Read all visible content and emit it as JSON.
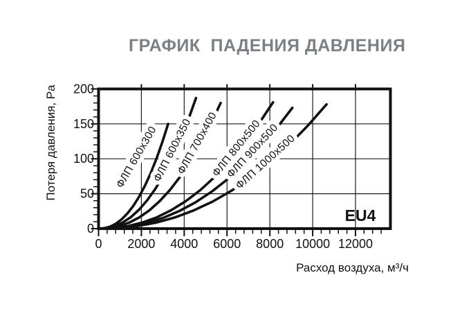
{
  "title": {
    "text": "ГРАФИК  ПАДЕНИЯ ДАВЛЕНИЯ",
    "color": "#7b8084"
  },
  "chart_data": {
    "type": "line",
    "title": "ГРАФИК ПАДЕНИЯ ДАВЛЕНИЯ",
    "xlabel": "Расход воздуха, м³/ч",
    "ylabel": "Потеря давления, Pa",
    "annotation": "EU4",
    "grid": true,
    "xlim": [
      0,
      13600
    ],
    "ylim": [
      0,
      200
    ],
    "line_color": "#111111",
    "xticks": {
      "values": [
        0,
        2000,
        4000,
        6000,
        8000,
        10000,
        12000
      ],
      "labels": [
        "0",
        "2000",
        "4000",
        "6000",
        "8000",
        "10000",
        "12000"
      ],
      "minor_step": 400,
      "minor_max": 13200
    },
    "yticks": {
      "values": [
        0,
        50,
        100,
        150,
        200
      ],
      "labels": [
        "0",
        "50",
        "100",
        "150",
        "200"
      ],
      "minor_step": 10,
      "minor_max": 190
    },
    "series": [
      {
        "name": "ФЛП 600x300",
        "label_at": [
          1900,
          100
        ],
        "label_rotation": -60,
        "points": [
          [
            0,
            0
          ],
          [
            271,
            0.6
          ],
          [
            542,
            2.9
          ],
          [
            813,
            7.1
          ],
          [
            1083,
            13.4
          ],
          [
            1354,
            21.9
          ],
          [
            1625,
            32.6
          ],
          [
            1896,
            45.8
          ],
          [
            2167,
            61.5
          ],
          [
            2438,
            79.7
          ],
          [
            2708,
            100.4
          ],
          [
            2979,
            123.9
          ],
          [
            3250,
            150
          ]
        ]
      },
      {
        "name": "ФЛП 600x350",
        "label_at": [
          3575,
          110
        ],
        "label_rotation": -63,
        "points": [
          [
            0,
            0
          ],
          [
            379,
            0.8
          ],
          [
            758,
            3.6
          ],
          [
            1138,
            8.9
          ],
          [
            1517,
            16.7
          ],
          [
            1896,
            27.3
          ],
          [
            2275,
            40.7
          ],
          [
            2654,
            57.1
          ],
          [
            3033,
            76.6
          ],
          [
            3413,
            99.3
          ],
          [
            3792,
            125.2
          ],
          [
            4171,
            154.4
          ],
          [
            4550,
            187
          ]
        ]
      },
      {
        "name": "ФЛП 700x400",
        "label_at": [
          4740,
          120
        ],
        "label_rotation": -61,
        "points": [
          [
            0,
            0
          ],
          [
            475,
            0.8
          ],
          [
            950,
            3.5
          ],
          [
            1425,
            8.5
          ],
          [
            1900,
            16.0
          ],
          [
            2375,
            26.2
          ],
          [
            2850,
            39.2
          ],
          [
            3325,
            55.0
          ],
          [
            3800,
            73.8
          ],
          [
            4275,
            95.6
          ],
          [
            4750,
            120.5
          ],
          [
            5225,
            148.6
          ],
          [
            5700,
            180
          ]
        ]
      },
      {
        "name": "ФЛП 800x500",
        "label_at": [
          6550,
          112
        ],
        "label_rotation": -51,
        "points": [
          [
            0,
            0
          ],
          [
            679,
            0.8
          ],
          [
            1358,
            3.5
          ],
          [
            2038,
            8.6
          ],
          [
            2717,
            16.1
          ],
          [
            3396,
            26.4
          ],
          [
            4075,
            39.4
          ],
          [
            4754,
            55.3
          ],
          [
            5433,
            74.2
          ],
          [
            6113,
            96.1
          ],
          [
            6792,
            121.2
          ],
          [
            7471,
            149.5
          ],
          [
            8150,
            181
          ]
        ]
      },
      {
        "name": "ФЛП 900x500",
        "label_at": [
          7300,
          108
        ],
        "label_rotation": -47,
        "points": [
          [
            0,
            0
          ],
          [
            754,
            0.7
          ],
          [
            1508,
            3.4
          ],
          [
            2263,
            8.2
          ],
          [
            3017,
            15.4
          ],
          [
            3771,
            25.2
          ],
          [
            4525,
            37.6
          ],
          [
            5279,
            52.8
          ],
          [
            6033,
            70.9
          ],
          [
            6788,
            91.9
          ],
          [
            7542,
            115.8
          ],
          [
            8296,
            142.9
          ],
          [
            9050,
            173
          ]
        ]
      },
      {
        "name": "ФЛП 1000x500",
        "label_at": [
          7890,
          92
        ],
        "label_rotation": -42,
        "points": [
          [
            0,
            0
          ],
          [
            888,
            0.8
          ],
          [
            1775,
            3.5
          ],
          [
            2663,
            8.4
          ],
          [
            3550,
            15.9
          ],
          [
            4438,
            26.0
          ],
          [
            5325,
            38.7
          ],
          [
            6213,
            54.4
          ],
          [
            7100,
            72.9
          ],
          [
            7988,
            94.5
          ],
          [
            8875,
            119.2
          ],
          [
            9763,
            147.0
          ],
          [
            10650,
            178
          ]
        ]
      }
    ]
  }
}
